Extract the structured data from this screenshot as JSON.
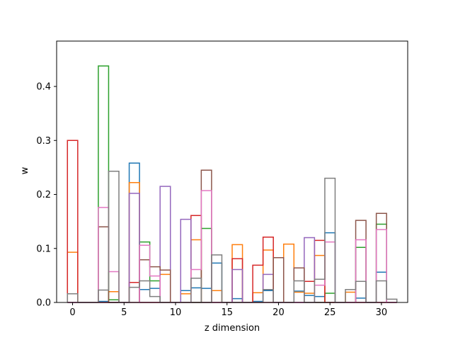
{
  "chart_data": {
    "type": "bar",
    "style": "step-outline histogram (unfilled bars), all series overlaid",
    "xlabel": "z dimension",
    "ylabel": "w",
    "xlim": [
      -1.55,
      32.55
    ],
    "ylim": [
      0,
      0.484
    ],
    "xticks": [
      0,
      5,
      10,
      15,
      20,
      25,
      30
    ],
    "yticks": [
      0.0,
      0.1,
      0.2,
      0.3,
      0.4
    ],
    "x": [
      0,
      1,
      2,
      3,
      4,
      5,
      6,
      7,
      8,
      9,
      10,
      11,
      12,
      13,
      14,
      15,
      16,
      17,
      18,
      19,
      20,
      21,
      22,
      23,
      24,
      25,
      26,
      27,
      28,
      29,
      30,
      31
    ],
    "grid": false,
    "legend": "none",
    "series": [
      {
        "color": "#1f77b4",
        "values": [
          0.0,
          0.0,
          0.0,
          0.002,
          0.0,
          0.0,
          0.258,
          0.024,
          0.026,
          0.0,
          0.0,
          0.022,
          0.027,
          0.026,
          0.073,
          0.0,
          0.007,
          0.0,
          0.002,
          0.022,
          0.0,
          0.0,
          0.021,
          0.013,
          0.011,
          0.129,
          0.0,
          0.0,
          0.008,
          0.0,
          0.056,
          0.0
        ]
      },
      {
        "color": "#ff7f0e",
        "values": [
          0.093,
          0.0,
          0.0,
          0.0,
          0.02,
          0.0,
          0.222,
          0.0,
          0.0,
          0.052,
          0.0,
          0.016,
          0.116,
          0.0,
          0.022,
          0.0,
          0.107,
          0.0,
          0.018,
          0.097,
          0.0,
          0.108,
          0.019,
          0.017,
          0.087,
          0.0,
          0.0,
          0.019,
          0.0,
          0.0,
          0.0,
          0.0
        ]
      },
      {
        "color": "#2ca02c",
        "values": [
          0.0,
          0.0,
          0.0,
          0.438,
          0.005,
          0.0,
          0.0,
          0.112,
          0.04,
          0.0,
          0.0,
          0.0,
          0.0,
          0.137,
          0.0,
          0.0,
          0.0,
          0.0,
          0.0,
          0.0,
          0.0,
          0.0,
          0.0,
          0.0,
          0.0,
          0.017,
          0.0,
          0.0,
          0.102,
          0.0,
          0.145,
          0.0
        ]
      },
      {
        "color": "#d62728",
        "values": [
          0.3,
          0.0,
          0.0,
          0.0,
          0.0,
          0.0,
          0.037,
          0.0,
          0.0,
          0.0,
          0.0,
          0.0,
          0.161,
          0.0,
          0.0,
          0.0,
          0.081,
          0.0,
          0.069,
          0.121,
          0.0,
          0.0,
          0.0,
          0.039,
          0.115,
          0.0,
          0.0,
          0.0,
          0.0,
          0.0,
          0.0,
          0.0
        ]
      },
      {
        "color": "#9467bd",
        "values": [
          0.0,
          0.0,
          0.0,
          0.0,
          0.0,
          0.0,
          0.202,
          0.0,
          0.0,
          0.215,
          0.0,
          0.154,
          0.0,
          0.0,
          0.0,
          0.0,
          0.061,
          0.0,
          0.0,
          0.052,
          0.0,
          0.0,
          0.0,
          0.12,
          0.0,
          0.0,
          0.0,
          0.0,
          0.0,
          0.0,
          0.0,
          0.0
        ]
      },
      {
        "color": "#8c564b",
        "values": [
          0.0,
          0.0,
          0.0,
          0.14,
          0.0,
          0.0,
          0.0,
          0.079,
          0.066,
          0.06,
          0.0,
          0.0,
          0.0,
          0.245,
          0.0,
          0.0,
          0.0,
          0.0,
          0.0,
          0.0,
          0.083,
          0.0,
          0.064,
          0.0,
          0.0,
          0.0,
          0.0,
          0.0,
          0.152,
          0.0,
          0.165,
          0.0
        ]
      },
      {
        "color": "#e377c2",
        "values": [
          0.0,
          0.0,
          0.0,
          0.176,
          0.057,
          0.0,
          0.0,
          0.106,
          0.049,
          0.0,
          0.0,
          0.0,
          0.061,
          0.207,
          0.0,
          0.0,
          0.0,
          0.0,
          0.0,
          0.0,
          0.0,
          0.0,
          0.0,
          0.0,
          0.032,
          0.112,
          0.0,
          0.0,
          0.116,
          0.0,
          0.135,
          0.0
        ]
      },
      {
        "color": "#7f7f7f",
        "values": [
          0.016,
          0.0,
          0.0,
          0.023,
          0.243,
          0.0,
          0.028,
          0.04,
          0.011,
          0.0,
          0.0,
          0.0,
          0.045,
          0.0,
          0.088,
          0.0,
          0.0,
          0.0,
          0.0,
          0.024,
          0.0,
          0.0,
          0.04,
          0.0,
          0.043,
          0.23,
          0.0,
          0.024,
          0.039,
          0.0,
          0.04,
          0.006
        ]
      }
    ]
  }
}
